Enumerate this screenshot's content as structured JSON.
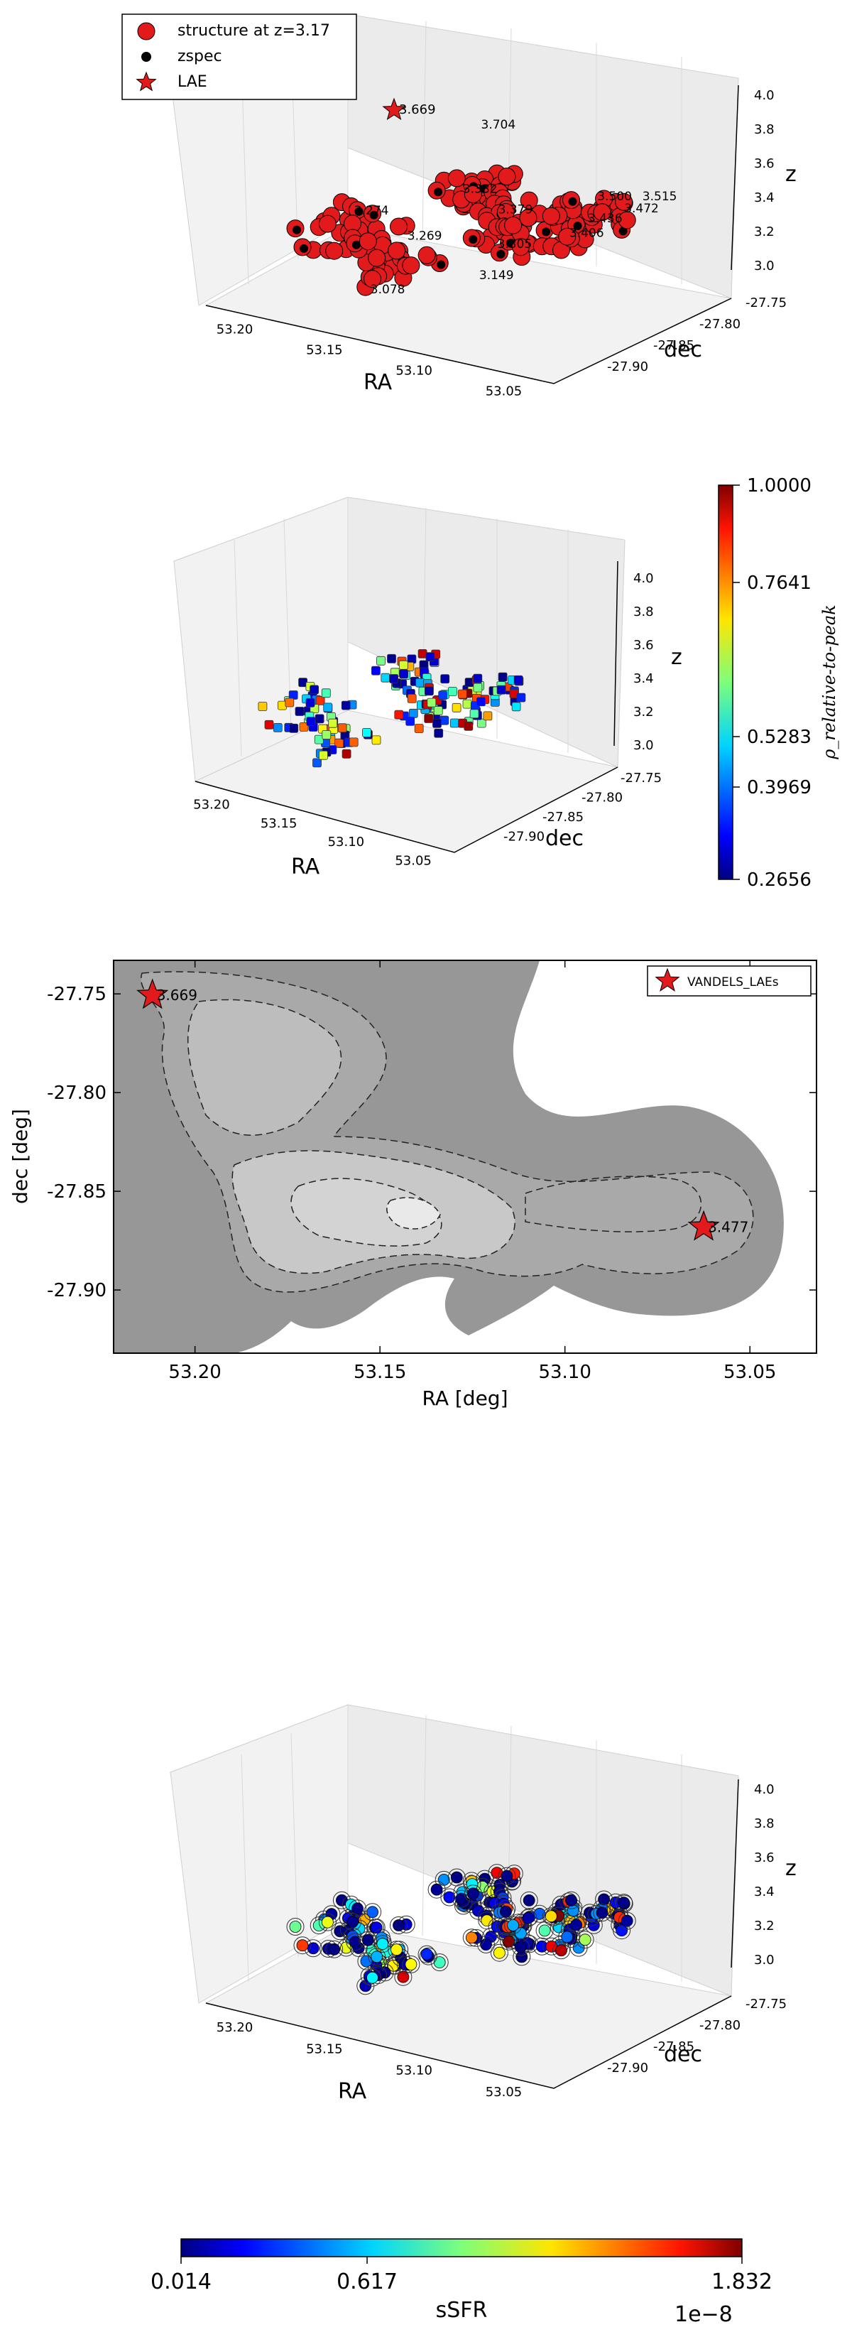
{
  "chart_data": [
    {
      "id": "panel1",
      "type": "scatter",
      "projection": "3d",
      "xlabel": "RA",
      "ylabel": "dec",
      "zlabel": "z",
      "x_ticks": [
        "53.20",
        "53.15",
        "53.10",
        "53.05"
      ],
      "y_ticks": [
        "-27.75",
        "-27.80",
        "-27.85",
        "-27.90"
      ],
      "z_ticks": [
        "4.0",
        "3.8",
        "3.6",
        "3.4",
        "3.2",
        "3.0"
      ],
      "xlim": [
        53.22,
        53.03
      ],
      "ylim": [
        -27.93,
        -27.73
      ],
      "zlim": [
        2.95,
        4.05
      ],
      "legend": {
        "placement": "top-left",
        "entries": [
          {
            "label": "structure at z=3.17",
            "marker": "circle",
            "color": "#e31a1c"
          },
          {
            "label": "zspec",
            "marker": "dot",
            "color": "#000000"
          },
          {
            "label": "LAE",
            "marker": "star",
            "color": "#e31a1c"
          }
        ]
      },
      "lae_label": "3.669",
      "annotations": [
        {
          "text": "3.704",
          "ra": 53.145,
          "dec": -27.79,
          "z": 3.7
        },
        {
          "text": "3.515",
          "ra": 53.055,
          "dec": -27.79,
          "z": 3.52
        },
        {
          "text": "3.500",
          "ra": 53.075,
          "dec": -27.8,
          "z": 3.5
        },
        {
          "text": "3.472",
          "ra": 53.06,
          "dec": -27.8,
          "z": 3.47
        },
        {
          "text": "3.436",
          "ra": 53.07,
          "dec": -27.82,
          "z": 3.44
        },
        {
          "text": "3.406",
          "ra": 53.07,
          "dec": -27.84,
          "z": 3.41
        },
        {
          "text": "3.382",
          "ra": 53.15,
          "dec": -27.8,
          "z": 3.38
        },
        {
          "text": "3.379",
          "ra": 53.12,
          "dec": -27.82,
          "z": 3.38
        },
        {
          "text": "3.305",
          "ra": 53.105,
          "dec": -27.85,
          "z": 3.3
        },
        {
          "text": "3.274",
          "ra": 53.19,
          "dec": -27.84,
          "z": 3.27
        },
        {
          "text": "3.269",
          "ra": 53.15,
          "dec": -27.86,
          "z": 3.27
        },
        {
          "text": "3.149",
          "ra": 53.11,
          "dec": -27.86,
          "z": 3.15
        },
        {
          "text": "3.078",
          "ra": 53.15,
          "dec": -27.9,
          "z": 3.08
        }
      ]
    },
    {
      "id": "panel2",
      "type": "scatter",
      "projection": "3d",
      "xlabel": "RA",
      "ylabel": "dec",
      "zlabel": "z",
      "x_ticks": [
        "53.20",
        "53.15",
        "53.10",
        "53.05"
      ],
      "y_ticks": [
        "-27.75",
        "-27.80",
        "-27.85",
        "-27.90"
      ],
      "z_ticks": [
        "4.0",
        "3.8",
        "3.6",
        "3.4",
        "3.2",
        "3.0"
      ],
      "colorbar": {
        "label": "ρ_relative-to-peak",
        "ticks": [
          "1.0000",
          "0.7641",
          "0.5283",
          "0.3969",
          "0.2656"
        ],
        "min": 0.2656,
        "max": 1.0,
        "colormap": "jet",
        "orientation": "vertical"
      }
    },
    {
      "id": "panel3",
      "type": "contour",
      "xlabel": "RA [deg]",
      "ylabel": "dec [deg]",
      "x_ticks": [
        "53.20",
        "53.15",
        "53.10",
        "53.05"
      ],
      "y_ticks": [
        "-27.75",
        "-27.80",
        "-27.85",
        "-27.90"
      ],
      "xlim": [
        53.222,
        53.032
      ],
      "ylim": [
        -27.932,
        -27.733
      ],
      "legend": {
        "placement": "top-right",
        "entries": [
          {
            "label": "VANDELS_LAEs",
            "marker": "star",
            "color": "#e31a1c"
          }
        ]
      },
      "points": [
        {
          "label": "3.669",
          "ra": 53.2115,
          "dec": -27.7507
        },
        {
          "label": "3.477",
          "ra": 53.0625,
          "dec": -27.8681
        }
      ],
      "fill_levels": [
        "#979797",
        "#bdbdbd",
        "#d3d3d3",
        "#e9e9e9"
      ]
    },
    {
      "id": "panel4",
      "type": "scatter",
      "projection": "3d",
      "xlabel": "RA",
      "ylabel": "dec",
      "zlabel": "z",
      "x_ticks": [
        "53.20",
        "53.15",
        "53.10",
        "53.05"
      ],
      "y_ticks": [
        "-27.75",
        "-27.80",
        "-27.85",
        "-27.90"
      ],
      "z_ticks": [
        "4.0",
        "3.8",
        "3.6",
        "3.4",
        "3.2",
        "3.0"
      ],
      "colorbar": {
        "label": "sSFR",
        "ticks": [
          "0.014",
          "0.617",
          "1.832"
        ],
        "offset_label": "1e−8",
        "min": 0.014,
        "max": 1.832,
        "colormap": "jet",
        "orientation": "horizontal"
      }
    }
  ]
}
